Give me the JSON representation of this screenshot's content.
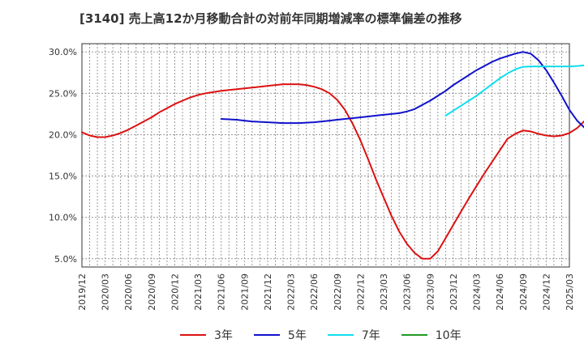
{
  "title": "[3140]  売上高12か月移動合計の対前年同期増減率の標準偏差の推移",
  "chart_data": {
    "type": "line",
    "title": "[3140]  売上高12か月移動合計の対前年同期増減率の標準偏差の推移",
    "ylim": [
      4.0,
      31.0
    ],
    "y_ticks": [
      5,
      10,
      15,
      20,
      25,
      30
    ],
    "y_tick_labels": [
      "5.0%",
      "10.0%",
      "15.0%",
      "20.0%",
      "25.0%",
      "30.0%"
    ],
    "x_tick_labels": [
      "2019/12",
      "2020/03",
      "2020/06",
      "2020/09",
      "2020/12",
      "2021/03",
      "2021/06",
      "2021/09",
      "2021/12",
      "2022/03",
      "2022/06",
      "2022/09",
      "2022/12",
      "2023/03",
      "2023/06",
      "2023/09",
      "2023/12",
      "2024/03",
      "2024/06",
      "2024/09",
      "2024/12",
      "2025/03"
    ],
    "grid": true,
    "legend_position": "bottom",
    "series": [
      {
        "name": "3年",
        "color": "#dd1111",
        "start_index": 0,
        "values": [
          20.3,
          19.9,
          19.7,
          19.7,
          19.9,
          20.2,
          20.6,
          21.1,
          21.6,
          22.1,
          22.7,
          23.2,
          23.7,
          24.1,
          24.5,
          24.8,
          25.0,
          25.15,
          25.3,
          25.4,
          25.5,
          25.6,
          25.7,
          25.8,
          25.9,
          26.0,
          26.1,
          26.1,
          26.1,
          26.0,
          25.8,
          25.5,
          25.0,
          24.2,
          23.0,
          21.3,
          19.3,
          17.0,
          14.6,
          12.4,
          10.2,
          8.3,
          6.8,
          5.7,
          5.0,
          5.0,
          5.9,
          7.5,
          9.1,
          10.7,
          12.3,
          13.8,
          15.3,
          16.7,
          18.1,
          19.5,
          20.1,
          20.5,
          20.4,
          20.1,
          19.9,
          19.8,
          19.9,
          20.2,
          20.8,
          21.7,
          22.8,
          24.2,
          25.7,
          27.2
        ]
      },
      {
        "name": "5年",
        "color": "#1111cc",
        "start_index": 18,
        "values": [
          21.9,
          21.85,
          21.8,
          21.7,
          21.6,
          21.55,
          21.5,
          21.45,
          21.4,
          21.4,
          21.4,
          21.45,
          21.5,
          21.6,
          21.7,
          21.8,
          21.9,
          22.0,
          22.1,
          22.2,
          22.3,
          22.4,
          22.5,
          22.6,
          22.8,
          23.1,
          23.6,
          24.1,
          24.7,
          25.3,
          26.0,
          26.6,
          27.2,
          27.8,
          28.3,
          28.8,
          29.2,
          29.5,
          29.8,
          30.0,
          29.8,
          29.0,
          27.8,
          26.3,
          24.7,
          23.0,
          21.7,
          20.8,
          20.4,
          20.4,
          20.6,
          21.1,
          22.1
        ]
      },
      {
        "name": "7年",
        "color": "#11ddee",
        "start_index": 47,
        "values": [
          22.3,
          22.9,
          23.5,
          24.1,
          24.7,
          25.4,
          26.1,
          26.8,
          27.4,
          27.9,
          28.2,
          28.25,
          28.25,
          28.25,
          28.25,
          28.25,
          28.25,
          28.3,
          28.4,
          28.5,
          28.7,
          29.0,
          29.3
        ]
      },
      {
        "name": "10年",
        "color": "#229922",
        "start_index": 0,
        "values": []
      }
    ]
  }
}
